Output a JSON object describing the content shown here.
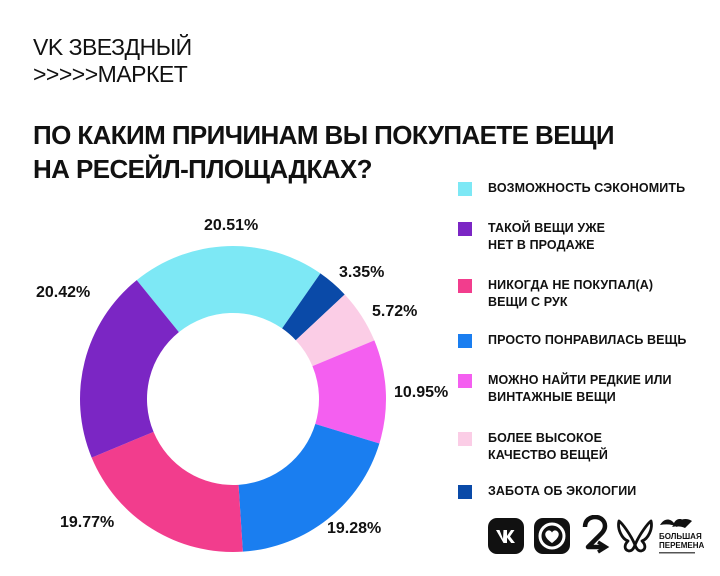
{
  "brand": {
    "line1": "VK ЗВЕЗДНЫЙ",
    "line2": ">>>>>МАРКЕТ"
  },
  "title": {
    "line1": "ПО КАКИМ ПРИЧИНАМ ВЫ ПОКУПАЕТЕ ВЕЩИ",
    "line2": "НА РЕСЕЙЛ-ПЛОЩАДКАХ?"
  },
  "chart_data": {
    "type": "pie",
    "title": "ПО КАКИМ ПРИЧИНАМ ВЫ ПОКУПАЕТЕ ВЕЩИ НА РЕСЕЙЛ-ПЛОЩАДКАХ?",
    "donut": true,
    "legend_position": "right",
    "slices": [
      {
        "label": "ВОЗМОЖНОСТЬ СЭКОНОМИТЬ",
        "value": 20.51,
        "display": "20.51%",
        "color": "#7de8f5"
      },
      {
        "label": "ЗАБОТА ОБ ЭКОЛОГИИ",
        "value": 3.35,
        "display": "3.35%",
        "color": "#0a4aa8"
      },
      {
        "label": "БОЛЕЕ ВЫСОКОЕ КАЧЕСТВО ВЕЩЕЙ",
        "value": 5.72,
        "display": "5.72%",
        "color": "#fbcde6"
      },
      {
        "label": "МОЖНО НАЙТИ РЕДКИЕ ИЛИ ВИНТАЖНЫЕ ВЕЩИ",
        "value": 10.95,
        "display": "10.95%",
        "color": "#f45ff0"
      },
      {
        "label": "ПРОСТО ПОНРАВИЛАСЬ ВЕЩЬ",
        "value": 19.28,
        "display": "19.28%",
        "color": "#1a7ef0"
      },
      {
        "label": "НИКОГДА НЕ ПОКУПАЛ(А) ВЕЩИ С РУК",
        "value": 19.77,
        "display": "19.77%",
        "color": "#f23d8d"
      },
      {
        "label": "ТАКОЙ ВЕЩИ УЖЕ НЕТ В ПРОДАЖЕ",
        "value": 20.42,
        "display": "20.42%",
        "color": "#7b26c4"
      }
    ]
  },
  "legend": [
    {
      "text": "ВОЗМОЖНОСТЬ СЭКОНОМИТЬ",
      "color": "#7de8f5"
    },
    {
      "text": "ТАКОЙ ВЕЩИ УЖЕ НЕТ В ПРОДАЖЕ",
      "color": "#7b26c4"
    },
    {
      "text": "НИКОГДА НЕ ПОКУПАЛ(А) ВЕЩИ С РУК",
      "color": "#f23d8d"
    },
    {
      "text": "ПРОСТО ПОНРАВИЛАСЬ ВЕЩЬ",
      "color": "#1a7ef0"
    },
    {
      "text": "МОЖНО НАЙТИ РЕДКИЕ ИЛИ ВИНТАЖНЫЕ ВЕЩИ",
      "color": "#f45ff0"
    },
    {
      "text": "БОЛЕЕ ВЫСОКОЕ КАЧЕСТВО ВЕЩЕЙ",
      "color": "#fbcde6"
    },
    {
      "text": "ЗАБОТА ОБ ЭКОЛОГИИ",
      "color": "#0a4aa8"
    }
  ],
  "logos": {
    "items": [
      "vk-logo-icon",
      "heart-ring-logo-icon",
      "number-two-arrow-logo-icon",
      "butterfly-logo-icon",
      "bolshaya-peremena-logo-icon"
    ],
    "partner_line1": "БОЛЬШАЯ",
    "partner_line2": "ПЕРЕМЕНА"
  }
}
